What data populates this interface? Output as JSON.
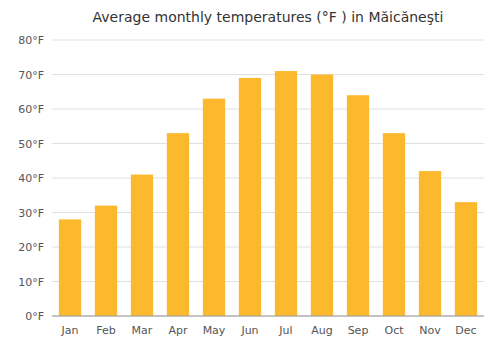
{
  "chart_data": {
    "type": "bar",
    "title": "Average monthly temperatures (°F ) in Măicăneşti",
    "categories": [
      "Jan",
      "Feb",
      "Mar",
      "Apr",
      "May",
      "Jun",
      "Jul",
      "Aug",
      "Sep",
      "Oct",
      "Nov",
      "Dec"
    ],
    "values": [
      28,
      32,
      41,
      53,
      63,
      69,
      71,
      70,
      64,
      53,
      42,
      33
    ],
    "color": "#FDB92E",
    "ylim": [
      0,
      80
    ],
    "yticks": [
      {
        "value": 0,
        "label": "0°F"
      },
      {
        "value": 10,
        "label": "10°F"
      },
      {
        "value": 20,
        "label": "20°F"
      },
      {
        "value": 30,
        "label": "30°F"
      },
      {
        "value": 40,
        "label": "40°F"
      },
      {
        "value": 50,
        "label": "50°F"
      },
      {
        "value": 60,
        "label": "60°F"
      },
      {
        "value": 70,
        "label": "70°F"
      },
      {
        "value": 80,
        "label": "80°F"
      }
    ],
    "grid": true
  }
}
